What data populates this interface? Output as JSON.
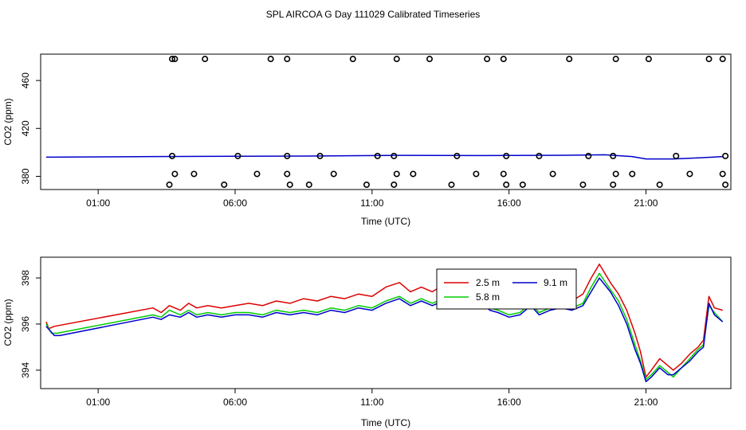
{
  "figure_title": "SPL AIRCOA G  Day 111029  Calibrated Timeseries",
  "colors": {
    "r2_5": "#dd0000",
    "r5_8": "#00cc00",
    "r9_1": "#0000cc",
    "other": "#008080",
    "axis": "#000000"
  },
  "chart_data": [
    {
      "type": "line",
      "title": "",
      "xlabel": "Time (UTC)",
      "ylabel": "CO2 (ppm)",
      "x_unit": "hours UTC",
      "xlim": [
        -1.1,
        24.1
      ],
      "ylim": [
        369,
        482
      ],
      "xticks": [
        1,
        6,
        11,
        16,
        21
      ],
      "xtick_labels": [
        "01:00",
        "06:00",
        "11:00",
        "16:00",
        "21:00"
      ],
      "yticks": [
        380,
        420,
        460
      ],
      "ytick_labels": [
        "380",
        "420",
        "460"
      ],
      "series": [
        {
          "name": "line",
          "color": "#0000cc",
          "x": [
            -0.9,
            3,
            6,
            9,
            12,
            15,
            18,
            19.5,
            20.5,
            21,
            22,
            23,
            23.8
          ],
          "y": [
            396,
            396.5,
            396.8,
            397,
            397.5,
            397.3,
            397.6,
            398,
            396.5,
            394.5,
            394.5,
            395.5,
            396.5
          ]
        },
        {
          "name": "points",
          "type": "scatter",
          "marker": "circle",
          "x": [
            3.7,
            3.8,
            4.9,
            7.3,
            7.9,
            10.3,
            11.9,
            13.1,
            15.2,
            15.8,
            18.2,
            19.9,
            21.1,
            23.3,
            23.8,
            3.7,
            6.1,
            7.9,
            9.1,
            11.2,
            11.8,
            14.1,
            15.9,
            17.1,
            18.9,
            19.8,
            22.1,
            23.9,
            3.8,
            4.5,
            6.8,
            7.9,
            9.6,
            11.9,
            12.5,
            14.8,
            15.8,
            17.6,
            19.9,
            20.5,
            22.6,
            23.8,
            3.6,
            5.6,
            8.0,
            8.7,
            10.8,
            11.8,
            13.9,
            15.9,
            16.5,
            18.7,
            19.8,
            21.5,
            23.9
          ],
          "y": [
            478,
            478,
            478,
            478,
            478,
            478,
            478,
            478,
            478,
            478,
            478,
            478,
            478,
            478,
            478,
            397,
            397,
            397,
            397,
            397,
            397,
            397,
            397,
            397,
            397,
            397,
            397,
            397,
            382,
            382,
            382,
            382,
            382,
            382,
            382,
            382,
            382,
            382,
            382,
            382,
            382,
            382,
            373,
            373,
            373,
            373,
            373,
            373,
            373,
            373,
            373,
            373,
            373,
            373,
            373
          ]
        }
      ]
    },
    {
      "type": "line",
      "title": "",
      "xlabel": "Time (UTC)",
      "ylabel": "CO2 (ppm)",
      "x_unit": "hours UTC",
      "xlim": [
        -1.1,
        24.1
      ],
      "ylim": [
        393.2,
        398.9
      ],
      "xticks": [
        1,
        6,
        11,
        16,
        21
      ],
      "xtick_labels": [
        "01:00",
        "06:00",
        "11:00",
        "16:00",
        "21:00"
      ],
      "yticks": [
        394,
        396,
        398
      ],
      "ytick_labels": [
        "394",
        "396",
        "398"
      ],
      "legend": {
        "placement": "top-center-right",
        "entries": [
          "2.5 m",
          "9.1 m",
          "5.8 m"
        ]
      },
      "series": [
        {
          "name": "2.5 m",
          "color": "#dd0000",
          "x": [
            -0.9,
            -0.8,
            -0.6,
            3.0,
            3.3,
            3.6,
            4.0,
            4.3,
            4.6,
            5.0,
            5.5,
            6.0,
            6.5,
            7.0,
            7.5,
            8.0,
            8.5,
            9.0,
            9.5,
            10.0,
            10.5,
            11.0,
            11.5,
            12.0,
            12.4,
            12.8,
            13.2,
            13.6,
            14.0,
            14.5,
            14.8,
            15.0,
            15.3,
            15.6,
            16.0,
            16.4,
            16.8,
            17.1,
            17.5,
            17.9,
            18.3,
            18.7,
            19.0,
            19.3,
            19.7,
            20.0,
            20.3,
            20.6,
            20.8,
            21.0,
            21.2,
            21.5,
            21.8,
            22.0,
            22.3,
            22.6,
            22.9,
            23.1,
            23.3,
            23.5,
            23.8
          ],
          "y": [
            396.1,
            395.8,
            395.9,
            396.7,
            396.5,
            396.8,
            396.6,
            396.9,
            396.7,
            396.8,
            396.7,
            396.8,
            396.9,
            396.8,
            397.0,
            396.9,
            397.1,
            397.0,
            397.2,
            397.1,
            397.3,
            397.2,
            397.6,
            397.8,
            397.4,
            397.6,
            397.4,
            397.7,
            397.5,
            397.7,
            397.9,
            397.6,
            397.2,
            397.0,
            396.7,
            396.9,
            397.3,
            397.0,
            397.1,
            397.2,
            397.0,
            397.3,
            398.0,
            398.6,
            397.8,
            397.3,
            396.6,
            395.6,
            394.8,
            393.7,
            394.0,
            394.5,
            394.2,
            394.0,
            394.3,
            394.7,
            395.0,
            395.3,
            397.2,
            396.7,
            396.6
          ]
        },
        {
          "name": "5.8 m",
          "color": "#00cc00",
          "x": [
            -0.9,
            -0.7,
            -0.5,
            3.0,
            3.3,
            3.6,
            4.0,
            4.3,
            4.6,
            5.0,
            5.5,
            6.0,
            6.5,
            7.0,
            7.5,
            8.0,
            8.5,
            9.0,
            9.5,
            10.0,
            10.5,
            11.0,
            11.5,
            12.0,
            12.4,
            12.8,
            13.2,
            13.6,
            14.0,
            14.5,
            14.8,
            15.0,
            15.3,
            15.6,
            16.0,
            16.4,
            16.8,
            17.1,
            17.5,
            17.9,
            18.3,
            18.7,
            19.0,
            19.3,
            19.7,
            20.0,
            20.3,
            20.6,
            20.8,
            21.0,
            21.2,
            21.5,
            21.8,
            22.0,
            22.3,
            22.6,
            22.9,
            23.1,
            23.3,
            23.5,
            23.8
          ],
          "y": [
            396.0,
            395.6,
            395.6,
            396.4,
            396.3,
            396.6,
            396.4,
            396.6,
            396.4,
            396.5,
            396.4,
            396.5,
            396.5,
            396.4,
            396.6,
            396.5,
            396.6,
            396.5,
            396.7,
            396.6,
            396.8,
            396.7,
            397.0,
            397.2,
            396.9,
            397.1,
            396.9,
            397.1,
            397.0,
            397.2,
            397.3,
            397.0,
            396.7,
            396.6,
            396.4,
            396.5,
            396.9,
            396.5,
            396.7,
            396.8,
            396.7,
            396.9,
            397.6,
            398.2,
            397.5,
            397.0,
            396.2,
            395.1,
            394.4,
            393.6,
            393.8,
            394.2,
            393.9,
            393.7,
            394.1,
            394.5,
            394.9,
            395.1,
            396.8,
            396.5,
            396.1
          ]
        },
        {
          "name": "9.1 m",
          "color": "#0000cc",
          "x": [
            -0.9,
            -0.6,
            -0.4,
            3.0,
            3.3,
            3.6,
            4.0,
            4.3,
            4.6,
            5.0,
            5.5,
            6.0,
            6.5,
            7.0,
            7.5,
            8.0,
            8.5,
            9.0,
            9.5,
            10.0,
            10.5,
            11.0,
            11.5,
            12.0,
            12.4,
            12.8,
            13.2,
            13.6,
            14.0,
            14.5,
            14.8,
            15.0,
            15.3,
            15.6,
            16.0,
            16.4,
            16.8,
            17.1,
            17.5,
            17.9,
            18.3,
            18.7,
            19.0,
            19.3,
            19.7,
            20.0,
            20.3,
            20.6,
            20.8,
            21.0,
            21.2,
            21.5,
            21.8,
            22.0,
            22.3,
            22.6,
            22.9,
            23.1,
            23.3,
            23.5,
            23.8
          ],
          "y": [
            395.9,
            395.5,
            395.5,
            396.3,
            396.2,
            396.4,
            396.3,
            396.5,
            396.3,
            396.4,
            396.3,
            396.4,
            396.4,
            396.3,
            396.5,
            396.4,
            396.5,
            396.4,
            396.6,
            396.5,
            396.7,
            396.6,
            396.9,
            397.1,
            396.8,
            397.0,
            396.8,
            397.0,
            396.9,
            397.1,
            397.2,
            396.9,
            396.6,
            396.5,
            396.3,
            396.4,
            396.8,
            396.4,
            396.6,
            396.7,
            396.6,
            396.8,
            397.4,
            398.0,
            397.4,
            396.8,
            396.0,
            394.9,
            394.3,
            393.5,
            393.7,
            394.1,
            393.8,
            393.8,
            394.1,
            394.4,
            394.8,
            395.0,
            396.9,
            396.4,
            396.1
          ]
        }
      ]
    }
  ]
}
